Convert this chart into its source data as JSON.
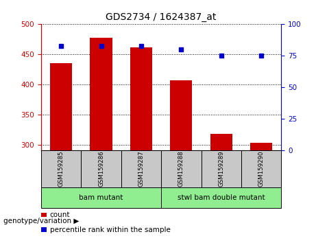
{
  "title": "GDS2734 / 1624387_at",
  "samples": [
    "GSM159285",
    "GSM159286",
    "GSM159287",
    "GSM159288",
    "GSM159289",
    "GSM159290"
  ],
  "counts": [
    435,
    478,
    462,
    407,
    318,
    303
  ],
  "percentiles": [
    83,
    83,
    83,
    80,
    75,
    75
  ],
  "ylim_left": [
    290,
    500
  ],
  "ylim_right": [
    0,
    100
  ],
  "yticks_left": [
    300,
    350,
    400,
    450,
    500
  ],
  "yticks_right": [
    0,
    25,
    50,
    75,
    100
  ],
  "bar_color": "#cc0000",
  "dot_color": "#0000cc",
  "bar_width": 0.55,
  "group_configs": [
    {
      "xstart": 0,
      "xend": 3,
      "label": "bam mutant"
    },
    {
      "xstart": 3,
      "xend": 6,
      "label": "stwl bam double mutant"
    }
  ],
  "group_label_prefix": "genotype/variation",
  "legend_count_label": "count",
  "legend_percentile_label": "percentile rank within the sample",
  "background_color": "#ffffff",
  "sample_label_area_color": "#c8c8c8",
  "group_area_color": "#90ee90"
}
